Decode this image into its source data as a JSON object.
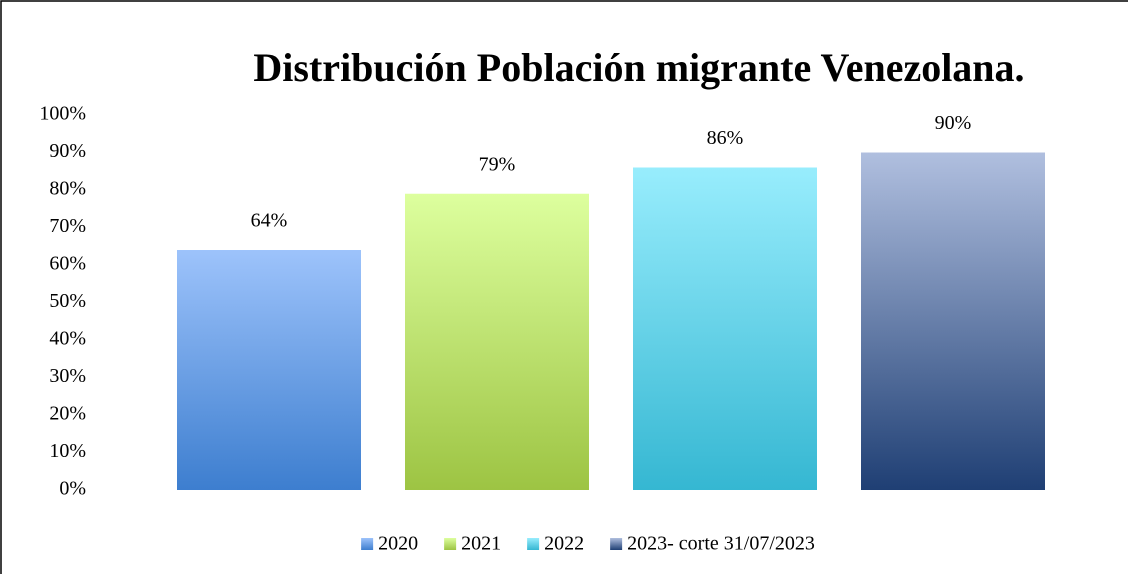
{
  "chart_data": {
    "type": "bar",
    "title": "Distribución Población migrante Venezolana.",
    "categories": [
      null
    ],
    "series": [
      {
        "name": "2020",
        "color": "#3d7ecf",
        "gradient_top": "#9dc3fb",
        "values": [
          64
        ],
        "value_labels": [
          "64%"
        ]
      },
      {
        "name": "2021",
        "color": "#9dc443",
        "gradient_top": "#ddff9e",
        "values": [
          79
        ],
        "value_labels": [
          "79%"
        ]
      },
      {
        "name": "2022",
        "color": "#35b7d2",
        "gradient_top": "#98edfd",
        "values": [
          86
        ],
        "value_labels": [
          "86%"
        ]
      },
      {
        "name": "2023- corte 31/07/2023",
        "color": "#1f3f74",
        "gradient_top": "#b0bfdf",
        "values": [
          90
        ],
        "value_labels": [
          "90%"
        ]
      }
    ],
    "ylim": [
      0,
      100
    ],
    "yticks": [
      {
        "value": 0,
        "label": "0%"
      },
      {
        "value": 10,
        "label": "10%"
      },
      {
        "value": 20,
        "label": "20%"
      },
      {
        "value": 30,
        "label": "30%"
      },
      {
        "value": 40,
        "label": "40%"
      },
      {
        "value": 50,
        "label": "50%"
      },
      {
        "value": 60,
        "label": "60%"
      },
      {
        "value": 70,
        "label": "70%"
      },
      {
        "value": 80,
        "label": "80%"
      },
      {
        "value": 90,
        "label": "90%"
      },
      {
        "value": 100,
        "label": "100%"
      }
    ],
    "grid": false,
    "legend": "bottom"
  }
}
